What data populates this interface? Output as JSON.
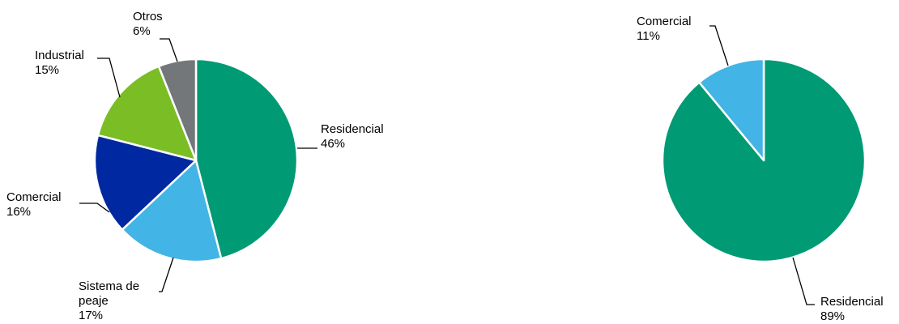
{
  "chart_data": [
    {
      "type": "pie",
      "slices": [
        {
          "label": [
            "Residencial"
          ],
          "value": 46,
          "color": "#009A74"
        },
        {
          "label": [
            "Sistema de",
            "peaje"
          ],
          "value": 17,
          "color": "#42B4E5"
        },
        {
          "label": [
            "Comercial"
          ],
          "value": 16,
          "color": "#0028A0"
        },
        {
          "label": [
            "Industrial"
          ],
          "value": 15,
          "color": "#7ABD25"
        },
        {
          "label": [
            "Otros"
          ],
          "value": 6,
          "color": "#73777A"
        }
      ],
      "value_suffix": "%"
    },
    {
      "type": "pie",
      "slices": [
        {
          "label": [
            "Residencial"
          ],
          "value": 89,
          "color": "#009A74"
        },
        {
          "label": [
            "Comercial"
          ],
          "value": 11,
          "color": "#42B4E5"
        }
      ],
      "value_suffix": "%"
    }
  ]
}
